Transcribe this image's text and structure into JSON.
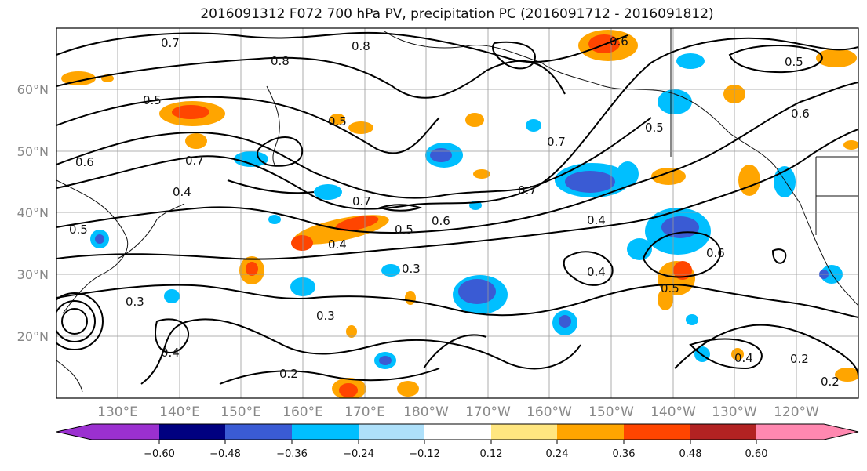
{
  "title": "2016091312 F072 700 hPa PV, precipitation PC (2016091712 - 2016091812)",
  "lat_labels": [
    "60°N",
    "50°N",
    "40°N",
    "30°N",
    "20°N"
  ],
  "lon_labels": [
    "130°E",
    "140°E",
    "150°E",
    "160°E",
    "170°E",
    "180°W",
    "170°W",
    "160°W",
    "150°W",
    "140°W",
    "130°W",
    "120°W"
  ],
  "colorbar": {
    "ticks": [
      "−0.60",
      "−0.48",
      "−0.36",
      "−0.24",
      "−0.12",
      "0.12",
      "0.24",
      "0.36",
      "0.48",
      "0.60"
    ],
    "colors": [
      "#9b30d0",
      "#000080",
      "#3a5bd4",
      "#00bfff",
      "#aee0fa",
      "#ffffff",
      "#ffe680",
      "#ffa500",
      "#ff4500",
      "#b22222",
      "#ff88b0"
    ]
  },
  "contour_labels": [
    "0.7",
    "0.8",
    "0.8",
    "0.5",
    "0.5",
    "0.6",
    "0.7",
    "0.4",
    "0.5",
    "0.7",
    "0.7",
    "0.5",
    "0.6",
    "0.4",
    "0.7",
    "0.5",
    "0.6",
    "0.5",
    "0.6",
    "0.4",
    "0.4",
    "0.6",
    "0.3",
    "0.3",
    "0.3",
    "0.4",
    "0.2",
    "0.5",
    "0.4",
    "0.2",
    "0.2"
  ]
}
